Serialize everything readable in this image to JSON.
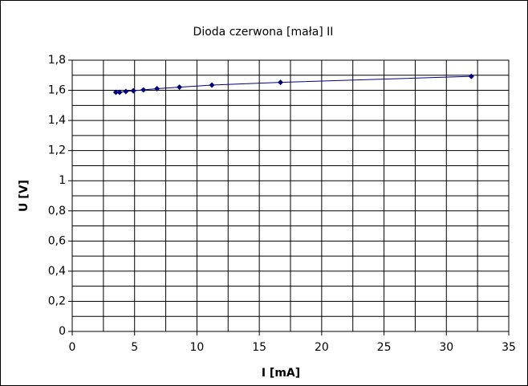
{
  "chart_data": {
    "type": "scatter",
    "title": "Dioda czerwona [mała] II",
    "x_label": "I [mA]",
    "y_label": "U [V]",
    "series": [
      {
        "color": "#000080",
        "x": [
          3.5,
          3.8,
          4.3,
          4.9,
          5.7,
          6.8,
          8.6,
          11.2,
          16.7,
          32.0
        ],
        "values": [
          1.587,
          1.587,
          1.592,
          1.597,
          1.603,
          1.611,
          1.621,
          1.635,
          1.653,
          1.693
        ]
      }
    ],
    "xlim": [
      0,
      35
    ],
    "xticks": [
      0,
      5,
      10,
      15,
      20,
      25,
      30,
      35
    ],
    "ylim": [
      0,
      1.8
    ],
    "yticks": [
      0,
      {
        "value": 0.2,
        "label": "0,2"
      },
      {
        "value": 0.4,
        "label": "0,4"
      },
      {
        "value": 0.6,
        "label": "0,6"
      },
      {
        "value": 0.8,
        "label": "0,8"
      },
      1,
      {
        "value": 1.2,
        "label": "1,2"
      },
      {
        "value": 1.4,
        "label": "1,4"
      },
      {
        "value": 1.6,
        "label": "1,6"
      },
      {
        "value": 1.8,
        "label": "1,8"
      }
    ],
    "x_minor_grid": [
      2.5,
      7.5,
      12.5,
      17.5,
      22.5,
      27.5,
      32.5
    ],
    "y_minor_grid": [
      0.1,
      0.3,
      0.5,
      0.7,
      0.9,
      1.1,
      1.3,
      1.5,
      1.7
    ],
    "grid": true
  }
}
